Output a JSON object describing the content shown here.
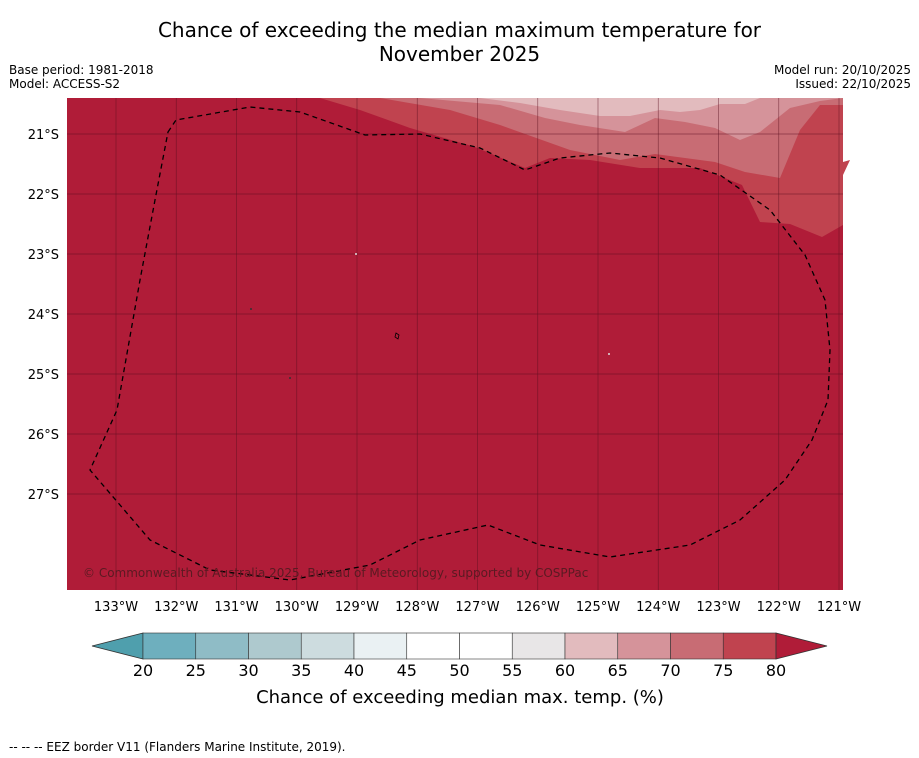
{
  "title_line1": "Chance of exceeding the median maximum temperature for",
  "title_line2": "November 2025",
  "meta_left": {
    "base_period": "Base period: 1981-2018",
    "model": "Model: ACCESS-S2"
  },
  "meta_right": {
    "model_run": "Model run: 20/10/2025",
    "issued": "Issued: 22/10/2025"
  },
  "map": {
    "lat_labels": [
      "21°S",
      "22°S",
      "23°S",
      "24°S",
      "25°S",
      "26°S",
      "27°S"
    ],
    "lon_labels": [
      "133°W",
      "132°W",
      "131°W",
      "130°W",
      "129°W",
      "128°W",
      "127°W",
      "126°W",
      "125°W",
      "124°W",
      "123°W",
      "122°W",
      "121°W"
    ],
    "copyright": "© Commonwealth of Australia 2025, Bureau of Meteorology, supported by COSPPac",
    "dominant_category": "80+",
    "colors": {
      "c80plus": "#b01c38",
      "c75_80": "#c0434f",
      "c70_75": "#c86c74",
      "c65_70": "#d5939a",
      "c60_65": "#e2bbbe",
      "eez_line": "#000000"
    }
  },
  "colorbar": {
    "ticks": [
      "20",
      "25",
      "30",
      "35",
      "40",
      "45",
      "50",
      "55",
      "60",
      "65",
      "70",
      "75",
      "80"
    ],
    "label": "Chance of exceeding median max. temp. (%)",
    "colors": [
      "#4f9fad",
      "#6eafbe",
      "#8fbcc6",
      "#aec9ce",
      "#cddcdf",
      "#eaf1f3",
      "#ffffff",
      "#ffffff",
      "#e8e6e7",
      "#e2bbbe",
      "#d5939a",
      "#c86c74",
      "#c0434f",
      "#b01c38"
    ]
  },
  "footer": "--  --  -- EEZ border V11 (Flanders Marine Institute, 2019)."
}
